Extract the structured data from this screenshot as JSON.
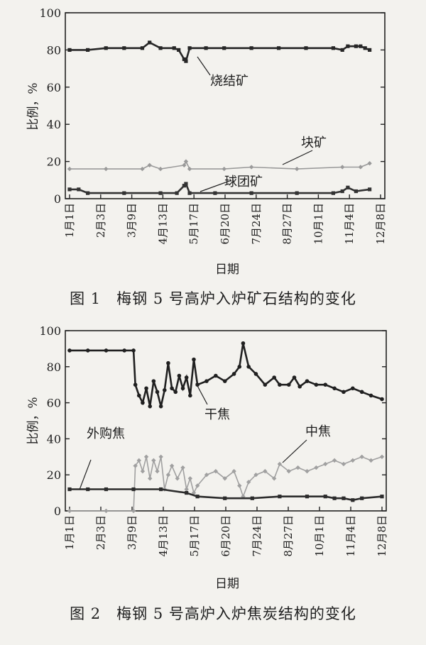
{
  "figures": [
    {
      "caption": "图 1　梅钢 5 号高炉入炉矿石结构的变化",
      "annotations": [
        "烧结矿",
        "块矿",
        "球团矿"
      ]
    },
    {
      "caption": "图 2　梅钢 5 号高炉入炉焦炭结构的变化",
      "annotations": [
        "干焦",
        "外购焦",
        "中焦"
      ]
    }
  ],
  "chart_data": [
    {
      "type": "line",
      "xlabel": "日期",
      "ylabel": "比例，%",
      "ylim": [
        0,
        100
      ],
      "yticks": [
        0,
        20,
        40,
        60,
        80,
        100
      ],
      "xlim": [
        0,
        342
      ],
      "categories": [
        "1月1日",
        "2月3日",
        "3月9日",
        "4月13日",
        "5月17日",
        "6月20日",
        "7月24日",
        "8月27日",
        "10月1日",
        "11月4日",
        "12月8日"
      ],
      "grid": false,
      "series": [
        {
          "name": "烧结矿",
          "color": "#262626",
          "marker": "square",
          "points": [
            [
              0,
              80
            ],
            [
              20,
              80
            ],
            [
              40,
              81
            ],
            [
              60,
              81
            ],
            [
              80,
              81
            ],
            [
              88,
              84
            ],
            [
              100,
              81
            ],
            [
              115,
              81
            ],
            [
              120,
              80
            ],
            [
              126,
              75
            ],
            [
              128,
              74
            ],
            [
              132,
              81
            ],
            [
              150,
              81
            ],
            [
              170,
              81
            ],
            [
              200,
              81
            ],
            [
              230,
              81
            ],
            [
              260,
              81
            ],
            [
              290,
              81
            ],
            [
              300,
              80
            ],
            [
              306,
              82
            ],
            [
              315,
              82
            ],
            [
              320,
              82
            ],
            [
              325,
              81
            ],
            [
              330,
              80
            ]
          ]
        },
        {
          "name": "块矿",
          "color": "#9a9a9a",
          "marker": "diamond",
          "points": [
            [
              0,
              16
            ],
            [
              40,
              16
            ],
            [
              80,
              16
            ],
            [
              88,
              18
            ],
            [
              100,
              16
            ],
            [
              126,
              18
            ],
            [
              128,
              20
            ],
            [
              132,
              16
            ],
            [
              170,
              16
            ],
            [
              200,
              17
            ],
            [
              250,
              16
            ],
            [
              300,
              17
            ],
            [
              320,
              17
            ],
            [
              330,
              19
            ]
          ]
        },
        {
          "name": "球团矿",
          "color": "#333333",
          "marker": "square",
          "points": [
            [
              0,
              5
            ],
            [
              10,
              5
            ],
            [
              20,
              3
            ],
            [
              60,
              3
            ],
            [
              100,
              3
            ],
            [
              118,
              3
            ],
            [
              126,
              7
            ],
            [
              128,
              8
            ],
            [
              132,
              3
            ],
            [
              160,
              3
            ],
            [
              200,
              3
            ],
            [
              250,
              3
            ],
            [
              290,
              3
            ],
            [
              300,
              4
            ],
            [
              306,
              6
            ],
            [
              315,
              4
            ],
            [
              330,
              5
            ]
          ]
        }
      ]
    },
    {
      "type": "line",
      "xlabel": "日期",
      "ylabel": "比例，%",
      "ylim": [
        0,
        100
      ],
      "yticks": [
        0,
        20,
        40,
        60,
        80,
        100
      ],
      "xlim": [
        0,
        342
      ],
      "categories": [
        "1月1日",
        "2月3日",
        "3月9日",
        "4月13日",
        "5月17日",
        "6月20日",
        "7月24日",
        "8月27日",
        "10月1日",
        "11月4日",
        "12月8日"
      ],
      "grid": false,
      "series": [
        {
          "name": "干焦",
          "color": "#202020",
          "marker": "circle",
          "points": [
            [
              0,
              89
            ],
            [
              20,
              89
            ],
            [
              40,
              89
            ],
            [
              60,
              89
            ],
            [
              70,
              89
            ],
            [
              72,
              70
            ],
            [
              76,
              64
            ],
            [
              80,
              60
            ],
            [
              84,
              68
            ],
            [
              88,
              58
            ],
            [
              92,
              72
            ],
            [
              96,
              66
            ],
            [
              100,
              58
            ],
            [
              104,
              67
            ],
            [
              108,
              82
            ],
            [
              112,
              68
            ],
            [
              116,
              66
            ],
            [
              120,
              75
            ],
            [
              124,
              68
            ],
            [
              128,
              74
            ],
            [
              132,
              64
            ],
            [
              136,
              84
            ],
            [
              140,
              70
            ],
            [
              150,
              72
            ],
            [
              160,
              75
            ],
            [
              170,
              72
            ],
            [
              180,
              76
            ],
            [
              186,
              80
            ],
            [
              190,
              93
            ],
            [
              196,
              80
            ],
            [
              204,
              76
            ],
            [
              214,
              70
            ],
            [
              224,
              74
            ],
            [
              230,
              70
            ],
            [
              240,
              70
            ],
            [
              246,
              74
            ],
            [
              252,
              69
            ],
            [
              260,
              72
            ],
            [
              270,
              70
            ],
            [
              280,
              70
            ],
            [
              290,
              68
            ],
            [
              300,
              66
            ],
            [
              310,
              68
            ],
            [
              320,
              66
            ],
            [
              330,
              64
            ],
            [
              342,
              62
            ]
          ]
        },
        {
          "name": "中焦",
          "color": "#a0a0a0",
          "marker": "diamond",
          "points": [
            [
              0,
              0
            ],
            [
              40,
              0
            ],
            [
              70,
              0
            ],
            [
              72,
              25
            ],
            [
              76,
              28
            ],
            [
              80,
              22
            ],
            [
              84,
              30
            ],
            [
              88,
              18
            ],
            [
              92,
              28
            ],
            [
              96,
              22
            ],
            [
              100,
              30
            ],
            [
              104,
              12
            ],
            [
              108,
              20
            ],
            [
              112,
              25
            ],
            [
              118,
              18
            ],
            [
              124,
              24
            ],
            [
              128,
              12
            ],
            [
              132,
              18
            ],
            [
              136,
              10
            ],
            [
              140,
              14
            ],
            [
              150,
              20
            ],
            [
              160,
              22
            ],
            [
              170,
              18
            ],
            [
              180,
              22
            ],
            [
              186,
              14
            ],
            [
              190,
              8
            ],
            [
              196,
              16
            ],
            [
              204,
              20
            ],
            [
              214,
              22
            ],
            [
              224,
              18
            ],
            [
              230,
              26
            ],
            [
              240,
              22
            ],
            [
              250,
              24
            ],
            [
              260,
              22
            ],
            [
              270,
              24
            ],
            [
              280,
              26
            ],
            [
              290,
              28
            ],
            [
              300,
              26
            ],
            [
              310,
              28
            ],
            [
              320,
              30
            ],
            [
              330,
              28
            ],
            [
              342,
              30
            ]
          ]
        },
        {
          "name": "外购焦",
          "color": "#2c2c2c",
          "marker": "square",
          "points": [
            [
              0,
              12
            ],
            [
              20,
              12
            ],
            [
              40,
              12
            ],
            [
              70,
              12
            ],
            [
              100,
              12
            ],
            [
              128,
              10
            ],
            [
              140,
              8
            ],
            [
              170,
              7
            ],
            [
              200,
              7
            ],
            [
              230,
              8
            ],
            [
              260,
              8
            ],
            [
              280,
              8
            ],
            [
              290,
              7
            ],
            [
              300,
              7
            ],
            [
              310,
              6
            ],
            [
              320,
              7
            ],
            [
              342,
              8
            ]
          ]
        }
      ]
    }
  ]
}
